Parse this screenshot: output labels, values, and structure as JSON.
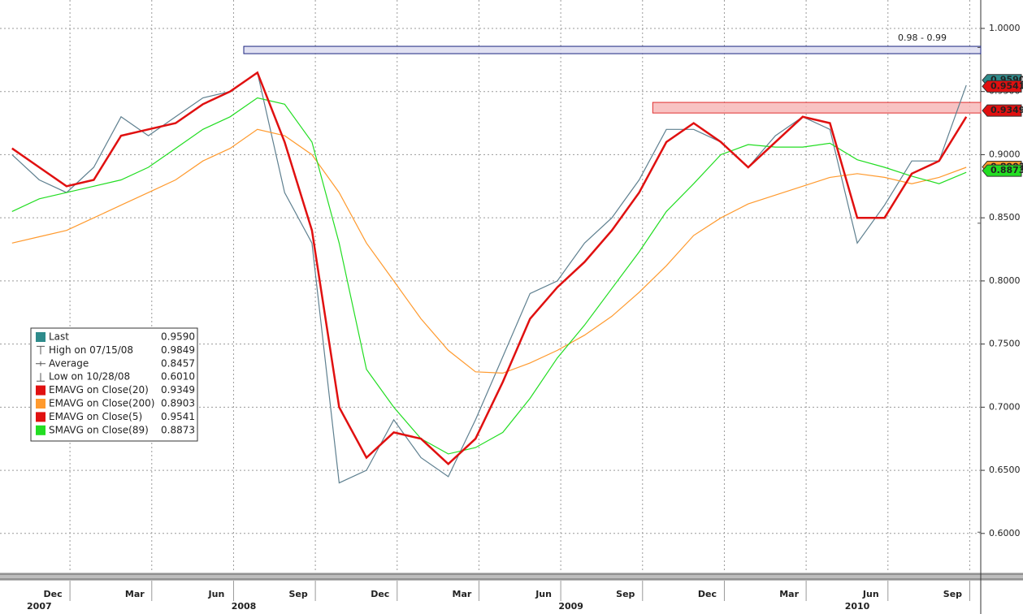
{
  "chart_data": {
    "type": "line",
    "xlim": [
      "2007-10",
      "2010-10"
    ],
    "ylim": [
      0.569,
      1.0225
    ],
    "yticks": [
      {
        "value": 1.0,
        "label": "1.0000"
      },
      {
        "value": 0.95,
        "label": "0.9500"
      },
      {
        "value": 0.9,
        "label": "0.9000"
      },
      {
        "value": 0.85,
        "label": "0.8500"
      },
      {
        "value": 0.8,
        "label": "0.8000"
      },
      {
        "value": 0.75,
        "label": "0.7500"
      },
      {
        "value": 0.7,
        "label": "0.7000"
      },
      {
        "value": 0.65,
        "label": "0.6500"
      },
      {
        "value": 0.6,
        "label": "0.6000"
      }
    ],
    "xticks": [
      {
        "value": "2007-12",
        "label": "Dec"
      },
      {
        "value": "2008-03",
        "label": "Mar"
      },
      {
        "value": "2008-06",
        "label": "Jun"
      },
      {
        "value": "2008-09",
        "label": "Sep"
      },
      {
        "value": "2008-12",
        "label": "Dec"
      },
      {
        "value": "2009-03",
        "label": "Mar"
      },
      {
        "value": "2009-06",
        "label": "Jun"
      },
      {
        "value": "2009-09",
        "label": "Sep"
      },
      {
        "value": "2009-12",
        "label": "Dec"
      },
      {
        "value": "2010-03",
        "label": "Mar"
      },
      {
        "value": "2010-06",
        "label": "Jun"
      },
      {
        "value": "2010-09",
        "label": "Sep"
      }
    ],
    "years": [
      "2007",
      "2008",
      "2009",
      "2010"
    ],
    "grid": true,
    "x": [
      "2007-10",
      "2007-11",
      "2007-12",
      "2008-01",
      "2008-02",
      "2008-03",
      "2008-04",
      "2008-05",
      "2008-06",
      "2008-07",
      "2008-08",
      "2008-09",
      "2008-10",
      "2008-11",
      "2008-12",
      "2009-01",
      "2009-02",
      "2009-03",
      "2009-04",
      "2009-05",
      "2009-06",
      "2009-07",
      "2009-08",
      "2009-09",
      "2009-10",
      "2009-11",
      "2009-12",
      "2010-01",
      "2010-02",
      "2010-03",
      "2010-04",
      "2010-05",
      "2010-06",
      "2010-07",
      "2010-08",
      "2010-09"
    ],
    "series": [
      {
        "color": "#5f8090",
        "width": 1.2,
        "values": [
          0.9,
          0.88,
          0.87,
          0.89,
          0.93,
          0.915,
          0.93,
          0.945,
          0.95,
          0.965,
          0.87,
          0.83,
          0.64,
          0.65,
          0.69,
          0.66,
          0.645,
          0.69,
          0.74,
          0.79,
          0.8,
          0.83,
          0.85,
          0.88,
          0.92,
          0.92,
          0.91,
          0.89,
          0.915,
          0.93,
          0.92,
          0.83,
          0.86,
          0.895,
          0.895,
          0.955
        ]
      },
      {
        "color": "#ff9a2e",
        "width": 1.2,
        "values": [
          0.83,
          0.835,
          0.84,
          0.85,
          0.86,
          0.87,
          0.88,
          0.895,
          0.905,
          0.92,
          0.915,
          0.9,
          0.87,
          0.83,
          0.8,
          0.77,
          0.745,
          0.728,
          0.727,
          0.735,
          0.745,
          0.757,
          0.772,
          0.791,
          0.812,
          0.836,
          0.85,
          0.861,
          0.868,
          0.875,
          0.882,
          0.885,
          0.882,
          0.877,
          0.882,
          0.89
        ]
      },
      {
        "color": "#22dd22",
        "width": 1.2,
        "values": [
          0.855,
          0.865,
          0.87,
          0.875,
          0.88,
          0.89,
          0.905,
          0.92,
          0.93,
          0.945,
          0.94,
          0.91,
          0.83,
          0.73,
          0.7,
          0.675,
          0.663,
          0.668,
          0.68,
          0.707,
          0.739,
          0.765,
          0.794,
          0.823,
          0.855,
          0.877,
          0.9,
          0.908,
          0.906,
          0.906,
          0.909,
          0.896,
          0.89,
          0.883,
          0.877,
          0.886
        ]
      },
      {
        "color": "#e01010",
        "width": 2.5,
        "values": [
          0.905,
          0.89,
          0.875,
          0.88,
          0.915,
          0.92,
          0.925,
          0.94,
          0.95,
          0.965,
          0.91,
          0.84,
          0.7,
          0.66,
          0.68,
          0.675,
          0.655,
          0.675,
          0.72,
          0.77,
          0.795,
          0.815,
          0.84,
          0.87,
          0.91,
          0.925,
          0.91,
          0.89,
          0.91,
          0.93,
          0.925,
          0.85,
          0.85,
          0.885,
          0.895,
          0.93
        ]
      }
    ],
    "bands": [
      {
        "from": 0.98,
        "to": 0.9858,
        "start": "2008-07",
        "fill": "#dcdcf0",
        "stroke": "#1a237e",
        "label": "0.98 - 0.99"
      },
      {
        "from": 0.933,
        "to": 0.9414,
        "start": "2009-10",
        "fill": "#f7b8b8",
        "stroke": "#e03030"
      }
    ],
    "legend": [
      {
        "name": "Last",
        "marker": "square",
        "color": "#2e8b8b",
        "value": 0.959,
        "label": "0.9590",
        "tag": true
      },
      {
        "name": "High on 07/15/08",
        "marker": "high",
        "value": 0.9849,
        "label": "0.9849"
      },
      {
        "name": "Average",
        "marker": "avg",
        "value": 0.8457,
        "label": "0.8457"
      },
      {
        "name": "Low on 10/28/08",
        "marker": "low",
        "value": 0.601,
        "label": "0.6010"
      },
      {
        "name": "EMAVG on Close(20)",
        "marker": "square",
        "color": "#e01010",
        "value": 0.9349,
        "label": "0.9349",
        "tag": true
      },
      {
        "name": "EMAVG on Close(200)",
        "marker": "square",
        "color": "#ff9a2e",
        "value": 0.8903,
        "label": "0.8903",
        "tag": true
      },
      {
        "name": "EMAVG on Close(5)",
        "marker": "square",
        "color": "#e01010",
        "value": 0.9541,
        "label": "0.9541",
        "tag": true
      },
      {
        "name": "SMAVG on Close(89)",
        "marker": "square",
        "color": "#22dd22",
        "value": 0.8873,
        "label": "0.8873",
        "tag": true
      }
    ]
  }
}
